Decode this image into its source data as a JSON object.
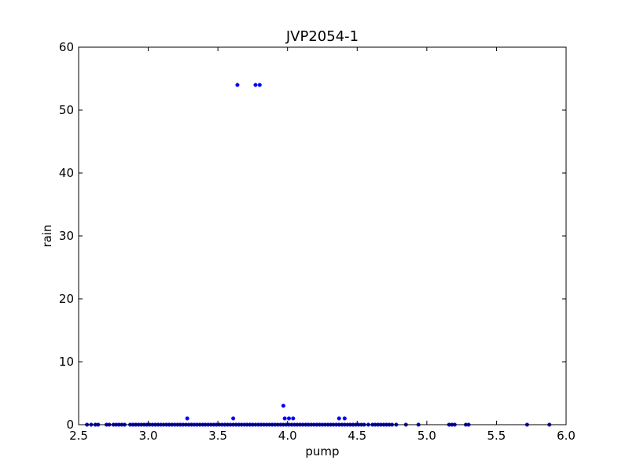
{
  "chart_data": {
    "type": "scatter",
    "title": "JVP2054-1",
    "xlabel": "pump",
    "ylabel": "rain",
    "xlim": [
      2.5,
      6.0
    ],
    "ylim": [
      0,
      60
    ],
    "xticks": [
      2.5,
      3.0,
      3.5,
      4.0,
      4.5,
      5.0,
      5.5,
      6.0
    ],
    "xtick_labels": [
      "2.5",
      "3.0",
      "3.5",
      "4.0",
      "4.5",
      "5.0",
      "5.5",
      "6.0"
    ],
    "yticks": [
      0,
      10,
      20,
      30,
      40,
      50,
      60
    ],
    "ytick_labels": [
      "0",
      "10",
      "20",
      "30",
      "40",
      "50",
      "60"
    ],
    "grid": false,
    "marker_color": "#0000ff",
    "series": [
      {
        "points": [
          [
            3.64,
            54
          ],
          [
            3.77,
            54
          ],
          [
            3.8,
            54
          ],
          [
            3.97,
            3
          ],
          [
            3.28,
            1
          ],
          [
            3.61,
            1
          ],
          [
            3.98,
            1
          ],
          [
            4.01,
            1
          ],
          [
            4.04,
            1
          ],
          [
            4.37,
            1
          ],
          [
            4.41,
            1
          ],
          [
            2.56,
            0
          ],
          [
            2.59,
            0
          ],
          [
            2.62,
            0
          ],
          [
            2.64,
            0
          ],
          [
            2.7,
            0
          ],
          [
            2.72,
            0
          ],
          [
            2.75,
            0
          ],
          [
            2.77,
            0
          ],
          [
            2.79,
            0
          ],
          [
            2.81,
            0
          ],
          [
            2.83,
            0
          ],
          [
            2.87,
            0
          ],
          [
            2.89,
            0
          ],
          [
            2.91,
            0
          ],
          [
            2.93,
            0
          ],
          [
            2.95,
            0
          ],
          [
            2.97,
            0
          ],
          [
            2.99,
            0
          ],
          [
            3.01,
            0
          ],
          [
            3.03,
            0
          ],
          [
            3.05,
            0
          ],
          [
            3.07,
            0
          ],
          [
            3.09,
            0
          ],
          [
            3.11,
            0
          ],
          [
            3.13,
            0
          ],
          [
            3.15,
            0
          ],
          [
            3.17,
            0
          ],
          [
            3.19,
            0
          ],
          [
            3.21,
            0
          ],
          [
            3.23,
            0
          ],
          [
            3.25,
            0
          ],
          [
            3.27,
            0
          ],
          [
            3.29,
            0
          ],
          [
            3.31,
            0
          ],
          [
            3.33,
            0
          ],
          [
            3.35,
            0
          ],
          [
            3.37,
            0
          ],
          [
            3.39,
            0
          ],
          [
            3.41,
            0
          ],
          [
            3.43,
            0
          ],
          [
            3.45,
            0
          ],
          [
            3.47,
            0
          ],
          [
            3.49,
            0
          ],
          [
            3.51,
            0
          ],
          [
            3.53,
            0
          ],
          [
            3.55,
            0
          ],
          [
            3.57,
            0
          ],
          [
            3.59,
            0
          ],
          [
            3.61,
            0
          ],
          [
            3.63,
            0
          ],
          [
            3.65,
            0
          ],
          [
            3.67,
            0
          ],
          [
            3.69,
            0
          ],
          [
            3.71,
            0
          ],
          [
            3.73,
            0
          ],
          [
            3.75,
            0
          ],
          [
            3.77,
            0
          ],
          [
            3.79,
            0
          ],
          [
            3.81,
            0
          ],
          [
            3.83,
            0
          ],
          [
            3.85,
            0
          ],
          [
            3.87,
            0
          ],
          [
            3.89,
            0
          ],
          [
            3.91,
            0
          ],
          [
            3.93,
            0
          ],
          [
            3.95,
            0
          ],
          [
            3.97,
            0
          ],
          [
            3.99,
            0
          ],
          [
            4.01,
            0
          ],
          [
            4.03,
            0
          ],
          [
            4.05,
            0
          ],
          [
            4.07,
            0
          ],
          [
            4.09,
            0
          ],
          [
            4.11,
            0
          ],
          [
            4.13,
            0
          ],
          [
            4.15,
            0
          ],
          [
            4.17,
            0
          ],
          [
            4.19,
            0
          ],
          [
            4.21,
            0
          ],
          [
            4.23,
            0
          ],
          [
            4.25,
            0
          ],
          [
            4.27,
            0
          ],
          [
            4.29,
            0
          ],
          [
            4.31,
            0
          ],
          [
            4.33,
            0
          ],
          [
            4.35,
            0
          ],
          [
            4.37,
            0
          ],
          [
            4.39,
            0
          ],
          [
            4.41,
            0
          ],
          [
            4.43,
            0
          ],
          [
            4.45,
            0
          ],
          [
            4.47,
            0
          ],
          [
            4.49,
            0
          ],
          [
            4.51,
            0
          ],
          [
            4.53,
            0
          ],
          [
            4.55,
            0
          ],
          [
            4.58,
            0
          ],
          [
            4.61,
            0
          ],
          [
            4.63,
            0
          ],
          [
            4.65,
            0
          ],
          [
            4.67,
            0
          ],
          [
            4.69,
            0
          ],
          [
            4.71,
            0
          ],
          [
            4.73,
            0
          ],
          [
            4.75,
            0
          ],
          [
            4.78,
            0
          ],
          [
            4.85,
            0
          ],
          [
            4.94,
            0
          ],
          [
            5.16,
            0
          ],
          [
            5.18,
            0
          ],
          [
            5.2,
            0
          ],
          [
            5.28,
            0
          ],
          [
            5.3,
            0
          ],
          [
            5.72,
            0
          ],
          [
            5.88,
            0
          ]
        ]
      }
    ]
  }
}
